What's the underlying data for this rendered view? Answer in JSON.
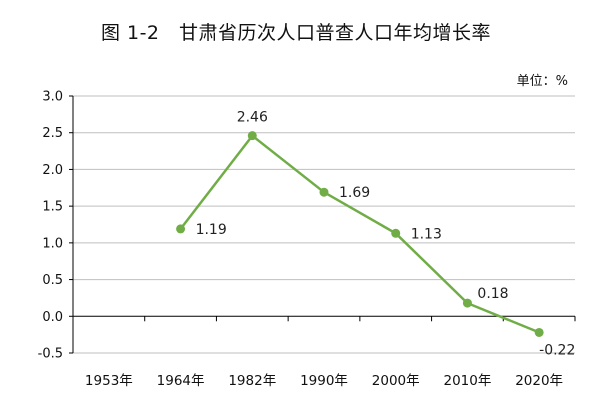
{
  "chart_data": {
    "type": "line",
    "title": "图 1-2　甘肃省历次人口普查人口年均增长率",
    "unit_label": "单位：%",
    "xlabel": "",
    "ylabel": "",
    "categories": [
      "1953年",
      "1964年",
      "1982年",
      "1990年",
      "2000年",
      "2010年",
      "2020年"
    ],
    "series": [
      {
        "values": [
          null,
          1.19,
          2.46,
          1.69,
          1.13,
          0.18,
          -0.22
        ],
        "data_labels": [
          "",
          "1.19",
          "2.46",
          "1.69",
          "1.13",
          "0.18",
          "-0.22"
        ]
      }
    ],
    "ylim": [
      -0.5,
      3.0
    ],
    "yticks": [
      "-0.5",
      "0.0",
      "0.5",
      "1.0",
      "1.5",
      "2.0",
      "2.5",
      "3.0"
    ],
    "grid": true,
    "legend": "none",
    "colors": {
      "line": "#70AD47",
      "negative_label": "#FF0000",
      "grid": "#BFBFBF",
      "axis": "#000000"
    }
  }
}
